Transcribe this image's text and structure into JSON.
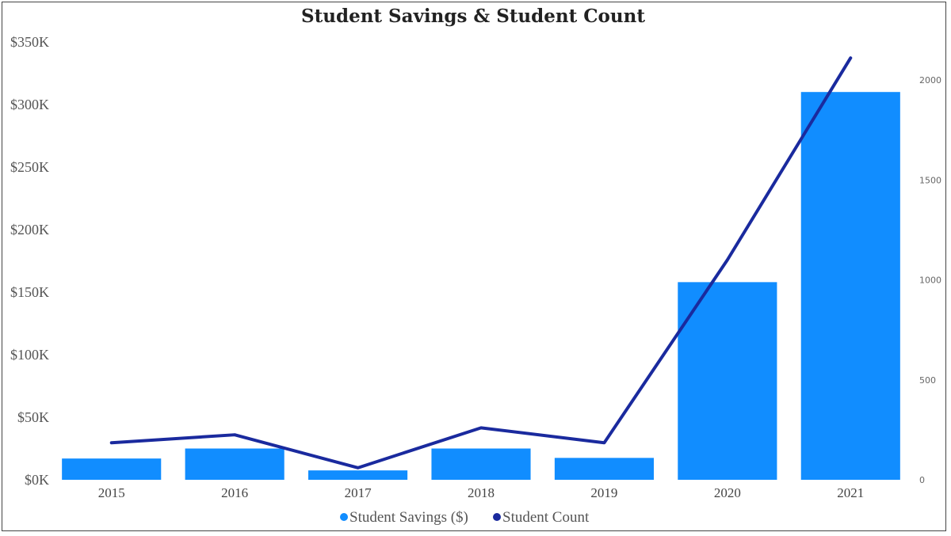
{
  "chart_data": {
    "type": "bar",
    "title": "Student Savings & Student Count",
    "categories": [
      "2015",
      "2016",
      "2017",
      "2018",
      "2019",
      "2020",
      "2021"
    ],
    "series": [
      {
        "name": "Student Savings ($)",
        "type": "bar",
        "axis": "left",
        "color": "#118DFF",
        "values": [
          17000,
          25000,
          7500,
          25000,
          17500,
          158000,
          310000
        ]
      },
      {
        "name": "Student Count",
        "type": "line",
        "axis": "right",
        "color": "#1A2A9E",
        "values": [
          185,
          225,
          60,
          260,
          185,
          1100,
          2110
        ]
      }
    ],
    "y_left": {
      "ylim": [
        0,
        350000
      ],
      "ticks": [
        0,
        50000,
        100000,
        150000,
        200000,
        250000,
        300000,
        350000
      ],
      "tick_labels": [
        "$0K",
        "$50K",
        "$100K",
        "$150K",
        "$200K",
        "$250K",
        "$300K",
        "$350K"
      ]
    },
    "y_right": {
      "ylim": [
        0,
        2000
      ],
      "ticks": [
        0,
        500,
        1000,
        1500,
        2000
      ],
      "tick_labels": [
        "0",
        "500",
        "1000",
        "1500",
        "2000"
      ]
    },
    "legend_position": "bottom-center",
    "grid": false
  }
}
